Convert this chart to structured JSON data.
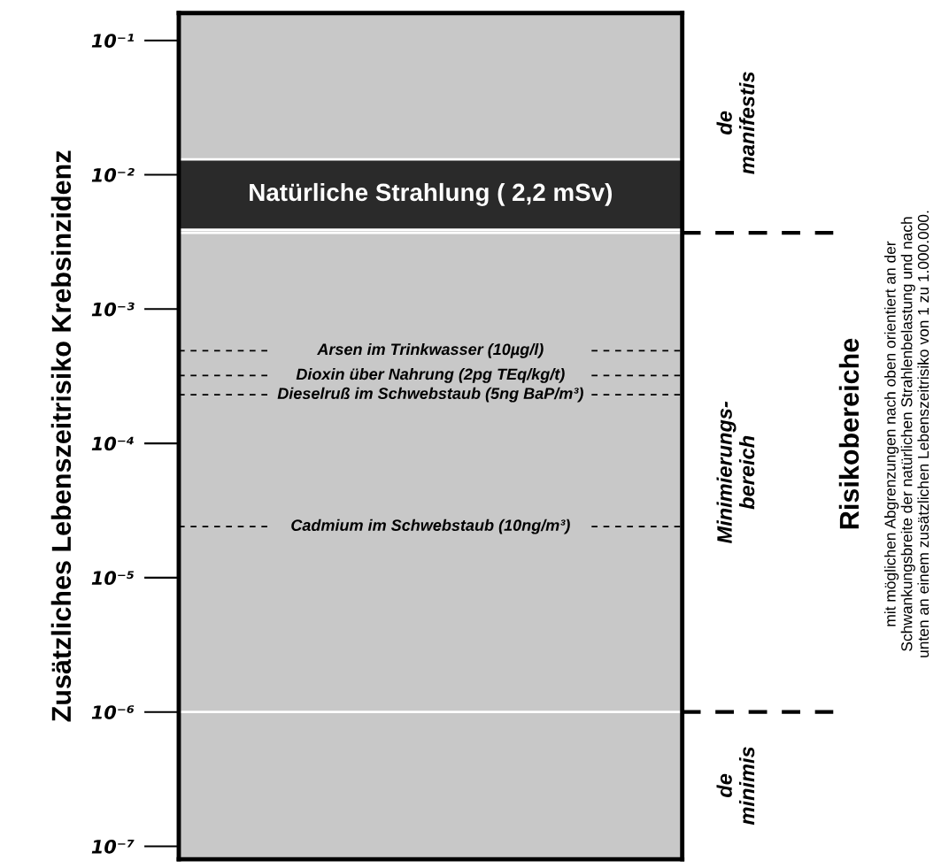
{
  "chart_data": {
    "type": "line",
    "ylabel": "Zusätzliches Lebenszeitrisiko Krebsinzidenz",
    "log": true,
    "categories": [
      null
    ],
    "ylim": [
      8e-08,
      0.16
    ],
    "yticks": [
      {
        "value": 0.1,
        "label": "10⁻¹"
      },
      {
        "value": 0.01,
        "label": "10⁻²"
      },
      {
        "value": 0.001,
        "label": "10⁻³"
      },
      {
        "value": 0.0001,
        "label": "10⁻⁴"
      },
      {
        "value": 1e-05,
        "label": "10⁻⁵"
      },
      {
        "value": 1e-06,
        "label": "10⁻⁶"
      },
      {
        "value": 1e-07,
        "label": "10⁻⁷"
      }
    ],
    "bands": [
      {
        "axis": "y",
        "from": 0.0039,
        "to": 0.013,
        "label": "Natürliche Strahlung ( 2,2 mSv)",
        "color": "#2a2a2a"
      }
    ],
    "ref_lines": [
      {
        "axis": "y",
        "value": 0.0037,
        "line_style": "solid",
        "color": "#ffffff"
      },
      {
        "axis": "y",
        "value": 1e-06,
        "line_style": "solid",
        "color": "#ffffff"
      },
      {
        "axis": "y",
        "value": 0.00049,
        "label": "Arsen im Trinkwasser (10µg/l)",
        "line_style": "dashed"
      },
      {
        "axis": "y",
        "value": 0.00032,
        "label": "Dioxin über Nahrung (2pg TEq/kg/t)",
        "line_style": "dashed"
      },
      {
        "axis": "y",
        "value": 0.00023,
        "label": "Dieselruß im Schwebstaub (5ng BaP/m³)",
        "line_style": "dashed"
      },
      {
        "axis": "y",
        "value": 2.4e-05,
        "label": "Cadmium im Schwebstaub (10ng/m³)",
        "line_style": "dashed"
      }
    ],
    "annotations": [
      "de\nmanifestis",
      "Minimierungs-\nbereich",
      "de\nminimis",
      "Risikobereiche",
      "mit möglichen Abgrenzungen nach oben orientiert an der\nSchwankungsbreite der natürlichen Strahlenbelastung und nach\nunten an einem zusätzlichen Lebenszeitrisiko von 1 zu 1.000.000."
    ]
  }
}
